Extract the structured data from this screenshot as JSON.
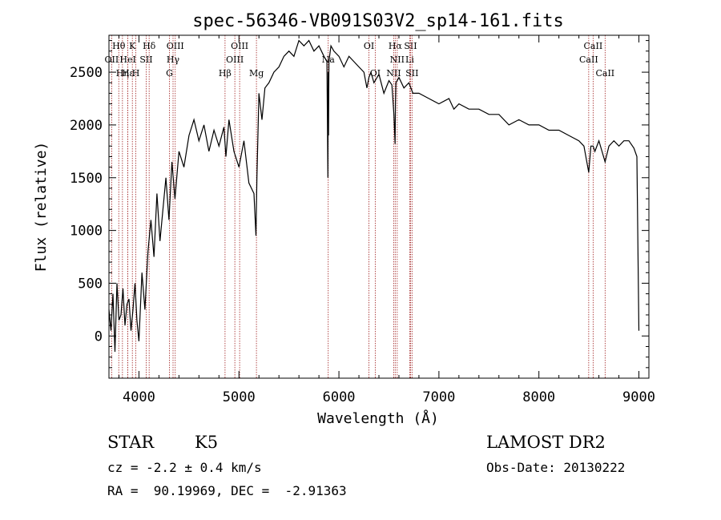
{
  "chart_data": {
    "type": "line",
    "title": "spec-56346-VB091S03V2_sp14-161.fits",
    "xlabel": "Wavelength (Å)",
    "ylabel": "Flux (relative)",
    "xlim": [
      3700,
      9100
    ],
    "ylim": [
      -400,
      2850
    ],
    "xticks": [
      4000,
      5000,
      6000,
      7000,
      8000,
      9000
    ],
    "yticks": [
      0,
      500,
      1000,
      1500,
      2000,
      2500
    ],
    "grid": false,
    "series": [
      {
        "x": [
          3700,
          3720,
          3740,
          3760,
          3780,
          3800,
          3820,
          3840,
          3860,
          3880,
          3900,
          3920,
          3940,
          3960,
          3980,
          4000,
          4030,
          4060,
          4090,
          4120,
          4150,
          4180,
          4210,
          4240,
          4270,
          4300,
          4330,
          4360,
          4400,
          4450,
          4500,
          4550,
          4600,
          4650,
          4700,
          4750,
          4800,
          4850,
          4870,
          4900,
          4950,
          5000,
          5050,
          5100,
          5150,
          5170,
          5180,
          5200,
          5230,
          5260,
          5300,
          5350,
          5400,
          5450,
          5500,
          5550,
          5600,
          5650,
          5700,
          5750,
          5800,
          5850,
          5880,
          5890,
          5893,
          5896,
          5900,
          5920,
          5950,
          6000,
          6050,
          6100,
          6150,
          6200,
          6250,
          6280,
          6300,
          6320,
          6350,
          6400,
          6450,
          6500,
          6530,
          6550,
          6562,
          6565,
          6570,
          6600,
          6650,
          6700,
          6720,
          6740,
          6800,
          6900,
          7000,
          7100,
          7150,
          7200,
          7300,
          7400,
          7500,
          7600,
          7700,
          7800,
          7900,
          8000,
          8100,
          8200,
          8300,
          8400,
          8450,
          8498,
          8520,
          8542,
          8560,
          8600,
          8662,
          8700,
          8750,
          8800,
          8850,
          8900,
          8950,
          8980,
          9000
        ],
        "values": [
          250,
          50,
          400,
          -150,
          500,
          150,
          200,
          450,
          100,
          300,
          350,
          50,
          250,
          500,
          150,
          -50,
          600,
          250,
          800,
          1100,
          750,
          1350,
          900,
          1200,
          1500,
          1100,
          1650,
          1300,
          1750,
          1600,
          1900,
          2050,
          1850,
          2000,
          1750,
          1950,
          1800,
          1980,
          1700,
          2050,
          1750,
          1600,
          1850,
          1450,
          1350,
          950,
          1500,
          2300,
          2050,
          2350,
          2400,
          2500,
          2550,
          2650,
          2700,
          2650,
          2800,
          2750,
          2800,
          2700,
          2750,
          2650,
          2600,
          1500,
          2500,
          1900,
          2600,
          2750,
          2700,
          2650,
          2550,
          2650,
          2600,
          2550,
          2500,
          2350,
          2450,
          2500,
          2400,
          2480,
          2300,
          2420,
          2380,
          2100,
          1820,
          2200,
          2400,
          2450,
          2350,
          2400,
          2350,
          2300,
          2300,
          2250,
          2200,
          2250,
          2150,
          2200,
          2150,
          2150,
          2100,
          2100,
          2000,
          2050,
          2000,
          2000,
          1950,
          1950,
          1900,
          1850,
          1800,
          1550,
          1800,
          1800,
          1750,
          1850,
          1650,
          1800,
          1850,
          1800,
          1850,
          1850,
          1780,
          1700,
          50
        ]
      }
    ],
    "lines": [
      {
        "label": "Hθ",
        "x": 3798,
        "row": 0
      },
      {
        "label": "OII",
        "x": 3727,
        "row": 1
      },
      {
        "label": "Hη",
        "x": 3835,
        "row": 2
      },
      {
        "label": "HeI",
        "x": 3889,
        "row": 1
      },
      {
        "label": "Hε",
        "x": 3889,
        "row": 2
      },
      {
        "label": "K",
        "x": 3934,
        "row": 0
      },
      {
        "label": "H",
        "x": 3969,
        "row": 2
      },
      {
        "label": "SII",
        "x": 4072,
        "row": 1
      },
      {
        "label": "Hδ",
        "x": 4102,
        "row": 0
      },
      {
        "label": "OIII",
        "x": 4363,
        "row": 0
      },
      {
        "label": "Hγ",
        "x": 4341,
        "row": 1
      },
      {
        "label": "G",
        "x": 4305,
        "row": 2
      },
      {
        "label": "Hβ",
        "x": 4861,
        "row": 2
      },
      {
        "label": "OIII",
        "x": 5007,
        "row": 0
      },
      {
        "label": "OIII",
        "x": 4959,
        "row": 1
      },
      {
        "label": "Mg",
        "x": 5175,
        "row": 2
      },
      {
        "label": "Na",
        "x": 5893,
        "row": 1
      },
      {
        "label": "OI",
        "x": 6300,
        "row": 0
      },
      {
        "label": "OI",
        "x": 6363,
        "row": 2
      },
      {
        "label": "NII",
        "x": 6548,
        "row": 2
      },
      {
        "label": "Hα",
        "x": 6563,
        "row": 0
      },
      {
        "label": "NII",
        "x": 6583,
        "row": 1
      },
      {
        "label": "SII",
        "x": 6716,
        "row": 0
      },
      {
        "label": "Li",
        "x": 6708,
        "row": 1
      },
      {
        "label": "SII",
        "x": 6731,
        "row": 2
      },
      {
        "label": "CaII",
        "x": 8542,
        "row": 0
      },
      {
        "label": "CaII",
        "x": 8498,
        "row": 1
      },
      {
        "label": "CaII",
        "x": 8662,
        "row": 2
      }
    ]
  },
  "info": {
    "class_label": "STAR",
    "subclass": "K5",
    "survey": "LAMOST DR2",
    "cz_text": "cz = -2.2 ± 0.4 km/s",
    "obs_date_text": "Obs-Date: 20130222",
    "coords_text": "RA =  90.19969, DEC =  -2.91363"
  }
}
